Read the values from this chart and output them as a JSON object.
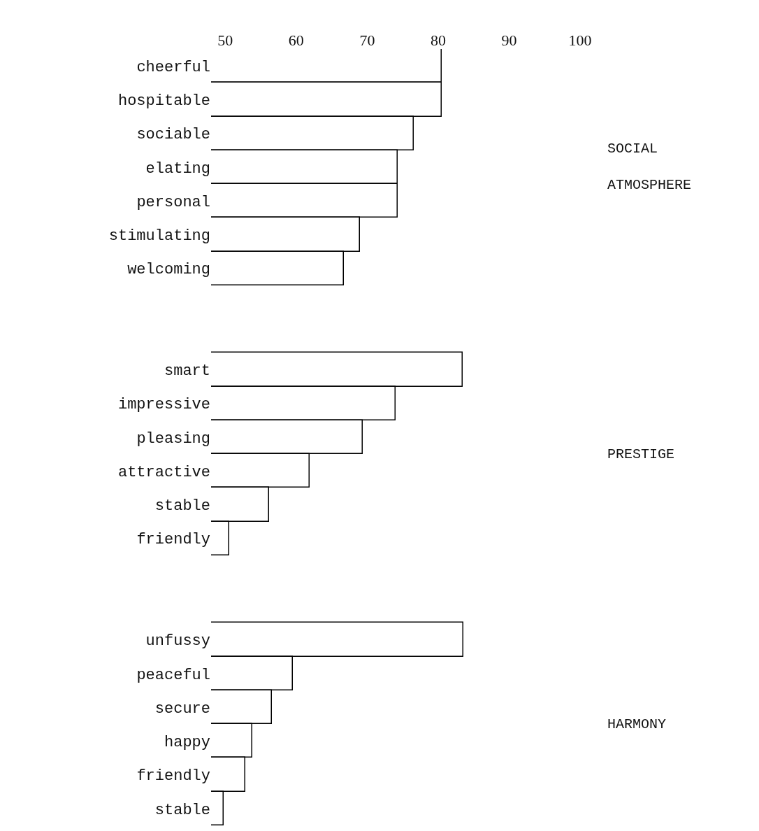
{
  "chart_data": {
    "type": "bar",
    "orientation": "horizontal",
    "categories": [
      "cheerful",
      "hospitable",
      "sociable",
      "elating",
      "personal",
      "stimulating",
      "welcoming",
      null,
      null,
      "smart",
      "impressive",
      "pleasing",
      "attractive",
      "stable",
      "friendly",
      null,
      null,
      "unfussy",
      "peaceful",
      "secure",
      "happy",
      "friendly",
      "stable"
    ],
    "values": [
      80.5,
      80.5,
      76.6,
      74.3,
      74.3,
      69,
      66.7,
      null,
      null,
      83.5,
      74,
      69.4,
      61.9,
      56.2,
      50.6,
      null,
      null,
      83.6,
      59.5,
      56.6,
      53.8,
      52.8,
      49.8
    ],
    "color": "#ffffff",
    "xlim": [
      48,
      100
    ],
    "xticks": [
      50,
      60,
      70,
      80,
      90,
      100
    ],
    "annotations": [
      "SOCIAL\nATMOSPHERE",
      "PRESTIGE",
      "HARMONY"
    ]
  }
}
